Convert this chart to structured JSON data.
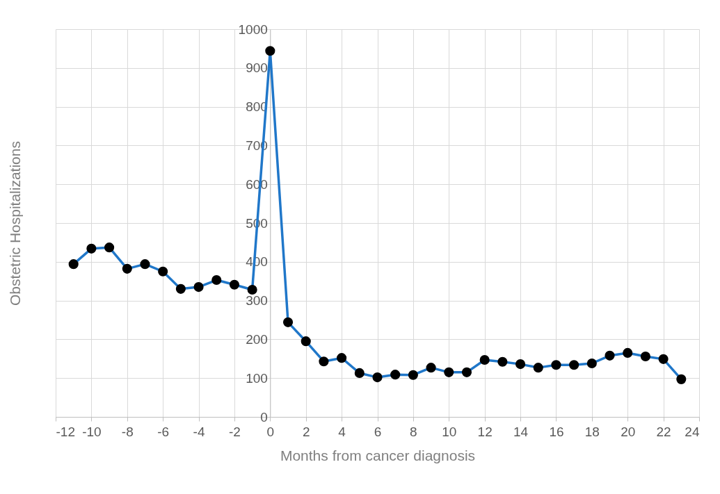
{
  "chart_data": {
    "type": "line",
    "xlabel": "Months from cancer diagnosis",
    "ylabel": "Obstetric Hospitalizations",
    "x": [
      -11,
      -10,
      -9,
      -8,
      -7,
      -6,
      -5,
      -4,
      -3,
      -2,
      -1,
      0,
      1,
      2,
      3,
      4,
      5,
      6,
      7,
      8,
      9,
      10,
      11,
      12,
      13,
      14,
      15,
      16,
      17,
      18,
      19,
      20,
      21,
      22,
      23
    ],
    "series": [
      {
        "color": "#2077c9",
        "values": [
          394,
          434,
          437,
          382,
          394,
          375,
          330,
          335,
          353,
          341,
          328,
          944,
          244,
          195,
          143,
          152,
          113,
          102,
          109,
          108,
          127,
          115,
          115,
          147,
          142,
          136,
          127,
          134,
          134,
          138,
          158,
          165,
          156,
          149,
          97
        ]
      }
    ],
    "xlim": [
      -12,
      24
    ],
    "xticks": [
      -12,
      -10,
      -8,
      -6,
      -4,
      -2,
      0,
      2,
      4,
      6,
      8,
      10,
      12,
      14,
      16,
      18,
      20,
      22,
      24
    ],
    "ylim": [
      0,
      1000
    ],
    "yticks": [
      0,
      100,
      200,
      300,
      400,
      500,
      600,
      700,
      800,
      900,
      1000
    ],
    "grid": true,
    "legend": false,
    "marker": "circle",
    "line_style": "solid"
  }
}
